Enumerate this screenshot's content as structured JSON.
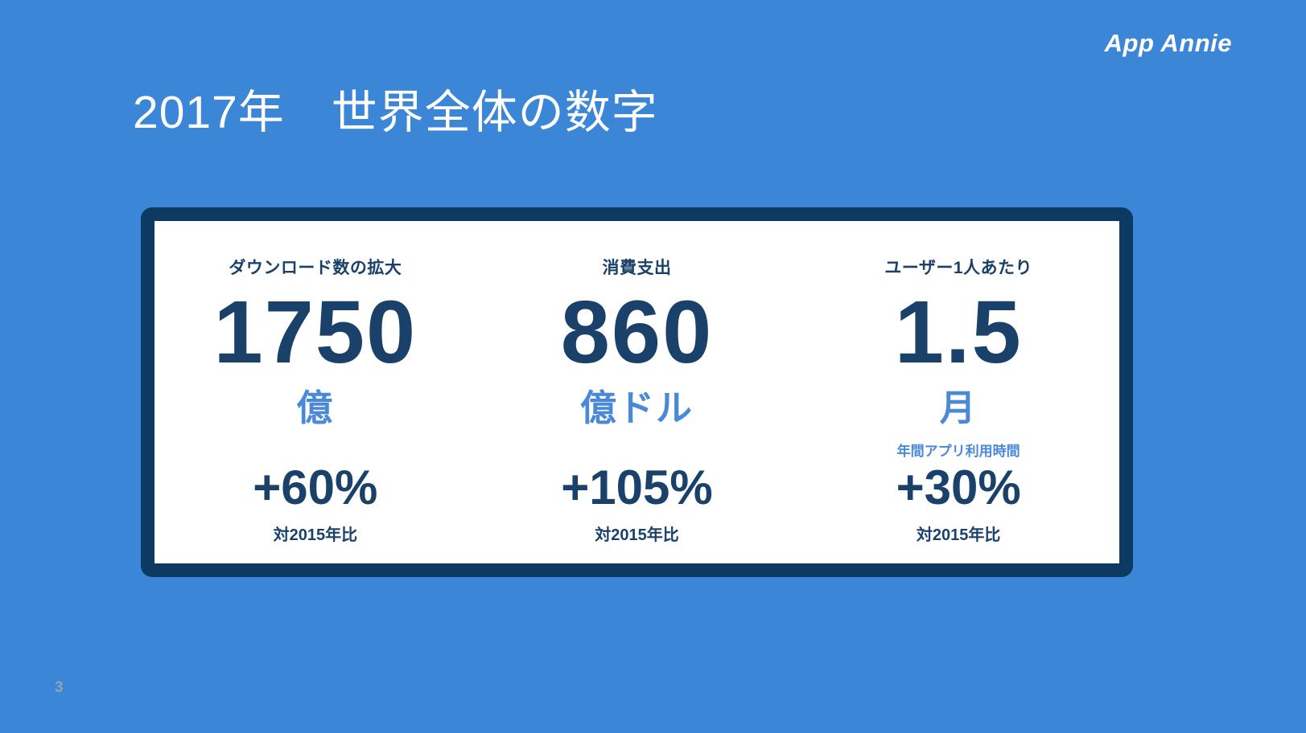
{
  "slide": {
    "title": "2017年　世界全体の数字",
    "page_number": "3"
  },
  "brand": {
    "logo_text": "App Annie"
  },
  "colors": {
    "background": "#3c86d8",
    "card_background": "#ffffff",
    "card_border_navy": "#0d3a62",
    "text_navy": "#1a4169",
    "accent_blue": "#4a89d8",
    "title_white": "#ffffff",
    "page_number_gray": "#93a2ad"
  },
  "stats": [
    {
      "label": "ダウンロード数の拡大",
      "value": "1750",
      "unit": "億",
      "change": "+60%",
      "basis": "対2015年比"
    },
    {
      "label": "消費支出",
      "value": "860",
      "unit": "億ドル",
      "change": "+105%",
      "basis": "対2015年比"
    },
    {
      "label": "ユーザー1人あたり",
      "value": "1.5",
      "unit": "月",
      "sub_note": "年間アプリ利用時間",
      "change": "+30%",
      "basis": "対2015年比"
    }
  ]
}
